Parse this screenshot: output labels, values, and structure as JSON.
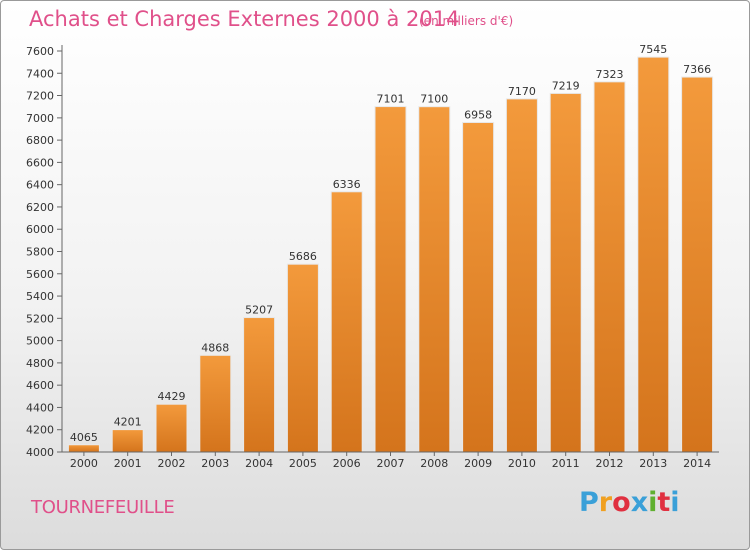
{
  "chart_data": {
    "type": "bar",
    "title": "Achats et Charges Externes 2000 à 2014",
    "subtitle": "(en milliers d'€)",
    "categories": [
      "2000",
      "2001",
      "2002",
      "2003",
      "2004",
      "2005",
      "2006",
      "2007",
      "2008",
      "2009",
      "2010",
      "2011",
      "2012",
      "2013",
      "2014"
    ],
    "values": [
      4065,
      4201,
      4429,
      4868,
      5207,
      5686,
      6336,
      7101,
      7100,
      6958,
      7170,
      7219,
      7323,
      7545,
      7366
    ],
    "ylim": [
      4000,
      7600
    ],
    "ytick_step": 200,
    "grid": false,
    "bar_color": "#f39a3c",
    "bar_color_dark": "#d4741c"
  },
  "footer": {
    "commune": "TOURNEFEUILLE",
    "logo_text": "Proxiti",
    "logo_colors": [
      "#3aa0d8",
      "#f0a020",
      "#e03040",
      "#3aa0d8",
      "#60b030",
      "#e03040",
      "#3aa0d8"
    ]
  }
}
